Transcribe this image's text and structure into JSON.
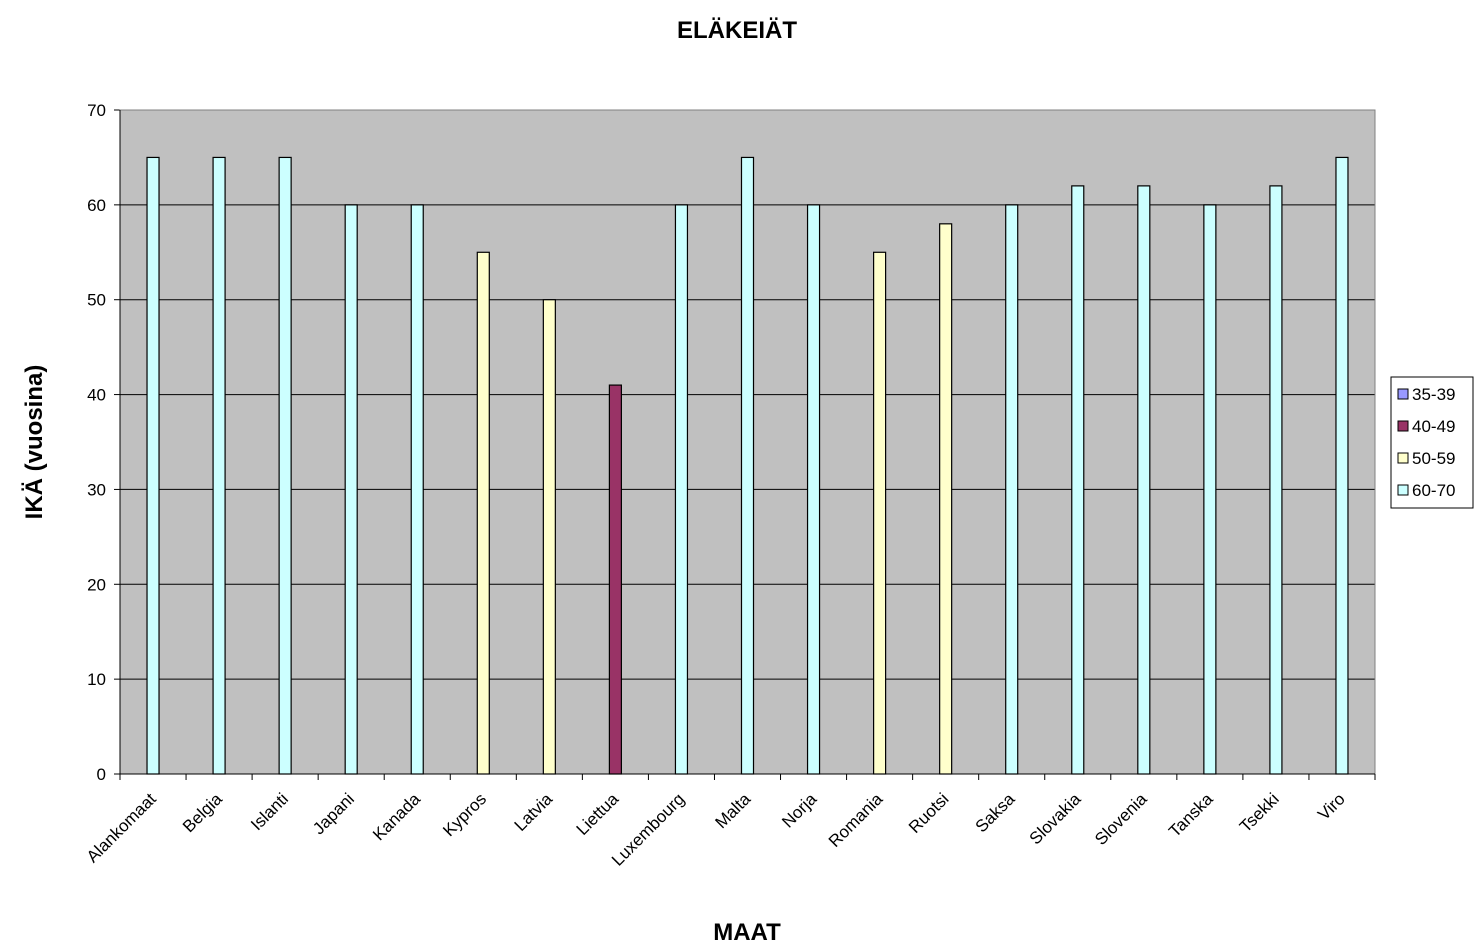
{
  "chart_data": {
    "type": "bar",
    "title": "ELÄKEIÄT",
    "xlabel": "MAAT",
    "ylabel": "IKÄ (vuosina)",
    "ylim": [
      0,
      70
    ],
    "yticks": [
      "0",
      "10",
      "20",
      "30",
      "40",
      "50",
      "60",
      "70"
    ],
    "grid": true,
    "legend_position": "right",
    "plot_background": "#C0C0C0",
    "categories": [
      "Alankomaat",
      "Belgia",
      "Islanti",
      "Japani",
      "Kanada",
      "Kypros",
      "Latvia",
      "Liettua",
      "Luxembourg",
      "Malta",
      "Norja",
      "Romania",
      "Ruotsi",
      "Saksa",
      "Slovakia",
      "Slovenia",
      "Tanska",
      "Tsekki",
      "Viro"
    ],
    "series": [
      {
        "name": "35-39",
        "color": "#9999FF",
        "values": [
          null,
          null,
          null,
          null,
          null,
          null,
          null,
          null,
          null,
          null,
          null,
          null,
          null,
          null,
          null,
          null,
          null,
          null,
          null
        ]
      },
      {
        "name": "40-49",
        "color": "#993366",
        "values": [
          null,
          null,
          null,
          null,
          null,
          null,
          null,
          41,
          null,
          null,
          null,
          null,
          null,
          null,
          null,
          null,
          null,
          null,
          null
        ]
      },
      {
        "name": "50-59",
        "color": "#FFFFCC",
        "values": [
          null,
          null,
          null,
          null,
          null,
          55,
          50,
          null,
          null,
          null,
          null,
          55,
          58,
          null,
          null,
          null,
          null,
          null,
          null
        ]
      },
      {
        "name": "60-70",
        "color": "#CCFFFF",
        "values": [
          65,
          65,
          65,
          60,
          60,
          null,
          null,
          null,
          60,
          65,
          60,
          null,
          null,
          60,
          62,
          62,
          60,
          62,
          65
        ]
      }
    ]
  }
}
